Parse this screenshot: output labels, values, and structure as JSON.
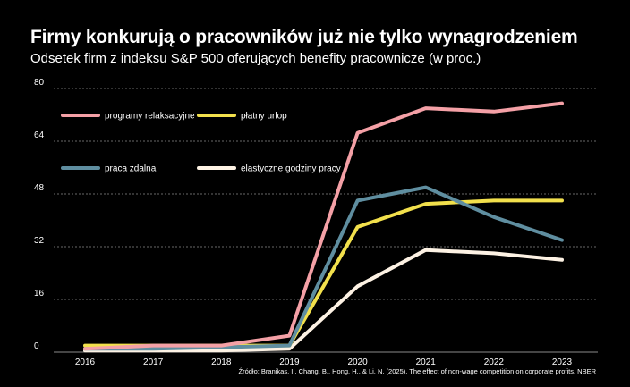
{
  "header": {
    "title": "Firmy konkurują o pracowników już nie tylko wynagrodzeniem",
    "subtitle": "Odsetek firm z indeksu S&P 500 oferujących benefity pracownicze (w proc.)"
  },
  "footer": {
    "source": "Źródło: Branikas, I., Chang, B., Hong, H., & Li, N. (2025). The effect of non-wage competition on corporate profits. NBER"
  },
  "chart_data": {
    "type": "line",
    "x": [
      "2016",
      "2017",
      "2018",
      "2019",
      "2020",
      "2021",
      "2022",
      "2023"
    ],
    "ylim": [
      0,
      80
    ],
    "yticks": [
      0,
      16,
      32,
      48,
      64,
      80
    ],
    "grid": "horizontal dotted",
    "legend_placement": "top-left",
    "series": [
      {
        "name": "programy relaksacyjne",
        "color": "#f4a0a6",
        "values": [
          1,
          2,
          2,
          5,
          66.5,
          74,
          73,
          75.5
        ]
      },
      {
        "name": "płatny urlop",
        "color": "#f2e04c",
        "values": [
          2,
          2,
          2,
          2,
          38,
          45,
          46,
          46
        ]
      },
      {
        "name": "praca zdalna",
        "color": "#5f8ea0",
        "values": [
          1,
          1,
          1.5,
          2,
          46,
          50,
          41,
          34
        ]
      },
      {
        "name": "elastyczne godziny pracy",
        "color": "#fdf2e4",
        "values": [
          0.5,
          0.5,
          0.5,
          1,
          20,
          31,
          30,
          28
        ]
      }
    ]
  }
}
